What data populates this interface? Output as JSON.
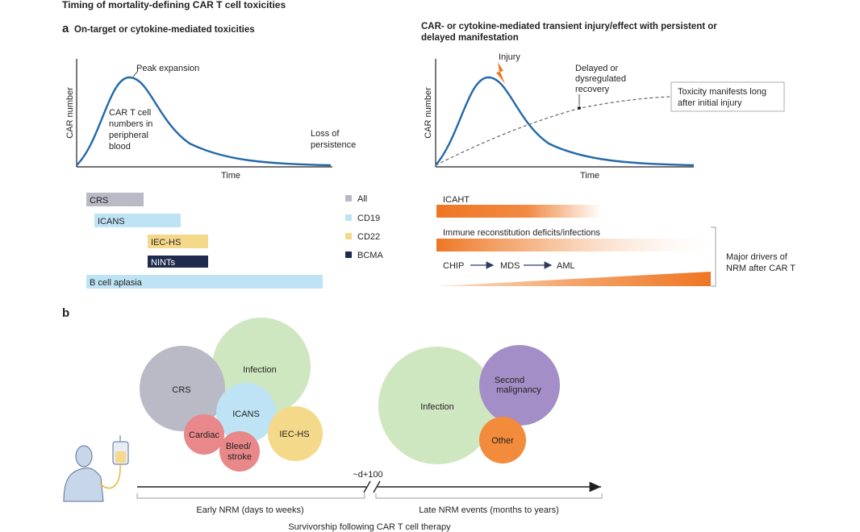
{
  "figure": {
    "title": "Timing of mortality-defining CAR T cell toxicities",
    "panel_a": {
      "letter": "a",
      "left_heading": "On-target or cytokine-mediated toxicities",
      "right_heading_line1": "CAR- or cytokine-mediated transient injury/effect with persistent or",
      "right_heading_line2": "delayed manifestation",
      "left_chart": {
        "ylabel": "CAR number",
        "xlabel": "Time",
        "peak_label": "Peak expansion",
        "curve_label_lines": [
          "CAR T cell",
          "numbers in",
          "peripheral",
          "blood"
        ],
        "loss_label_lines": [
          "Loss of",
          "persistence"
        ]
      },
      "right_chart": {
        "ylabel": "CAR number",
        "xlabel": "Time",
        "injury_label": "Injury",
        "delayed_label_lines": [
          "Delayed or",
          "dysregulated",
          "recovery"
        ],
        "toxicity_box_lines": [
          "Toxicity manifests long",
          "after initial injury"
        ]
      },
      "toxicity_bars": [
        {
          "label": "CRS",
          "product": "All"
        },
        {
          "label": "ICANS",
          "product": "CD19"
        },
        {
          "label": "IEC-HS",
          "product": "CD22"
        },
        {
          "label": "NINTs",
          "product": "BCMA"
        },
        {
          "label": "B cell aplasia",
          "product": "CD19"
        }
      ],
      "legend": [
        {
          "label": "All",
          "color": "#b9bac6"
        },
        {
          "label": "CD19",
          "color": "#bde3f5"
        },
        {
          "label": "CD22",
          "color": "#f5d98a"
        },
        {
          "label": "BCMA",
          "color": "#1e2b4d"
        }
      ],
      "orange_bars": {
        "icaht": "ICAHT",
        "immune": "Immune reconstitution deficits/infections",
        "chip": "CHIP",
        "mds": "MDS",
        "aml": "AML",
        "drivers_lines": [
          "Major drivers of",
          "NRM after CAR T"
        ]
      }
    },
    "panel_b": {
      "letter": "b",
      "early_bubbles": [
        "CRS",
        "Infection",
        "ICANS",
        "Cardiac",
        "Bleed/\nstroke",
        "IEC-HS"
      ],
      "late_bubbles": [
        "Infection",
        "Second\nmalignancy",
        "Other"
      ],
      "timepoint": "~d+100",
      "early_label": "Early NRM (days to weeks)",
      "late_label": "Late NRM events (months to years)",
      "axis_caption": "Survivorship following CAR T cell therapy"
    },
    "colors": {
      "curve": "#2368a8",
      "orange": "#ee7623",
      "crs": "#b9bac6",
      "infection": "#cfe7c0",
      "icans": "#bde3f5",
      "cardiac": "#e8888a",
      "ieces": "#f5d98a",
      "malignancy": "#a48ec8",
      "other": "#f28b3c"
    }
  }
}
